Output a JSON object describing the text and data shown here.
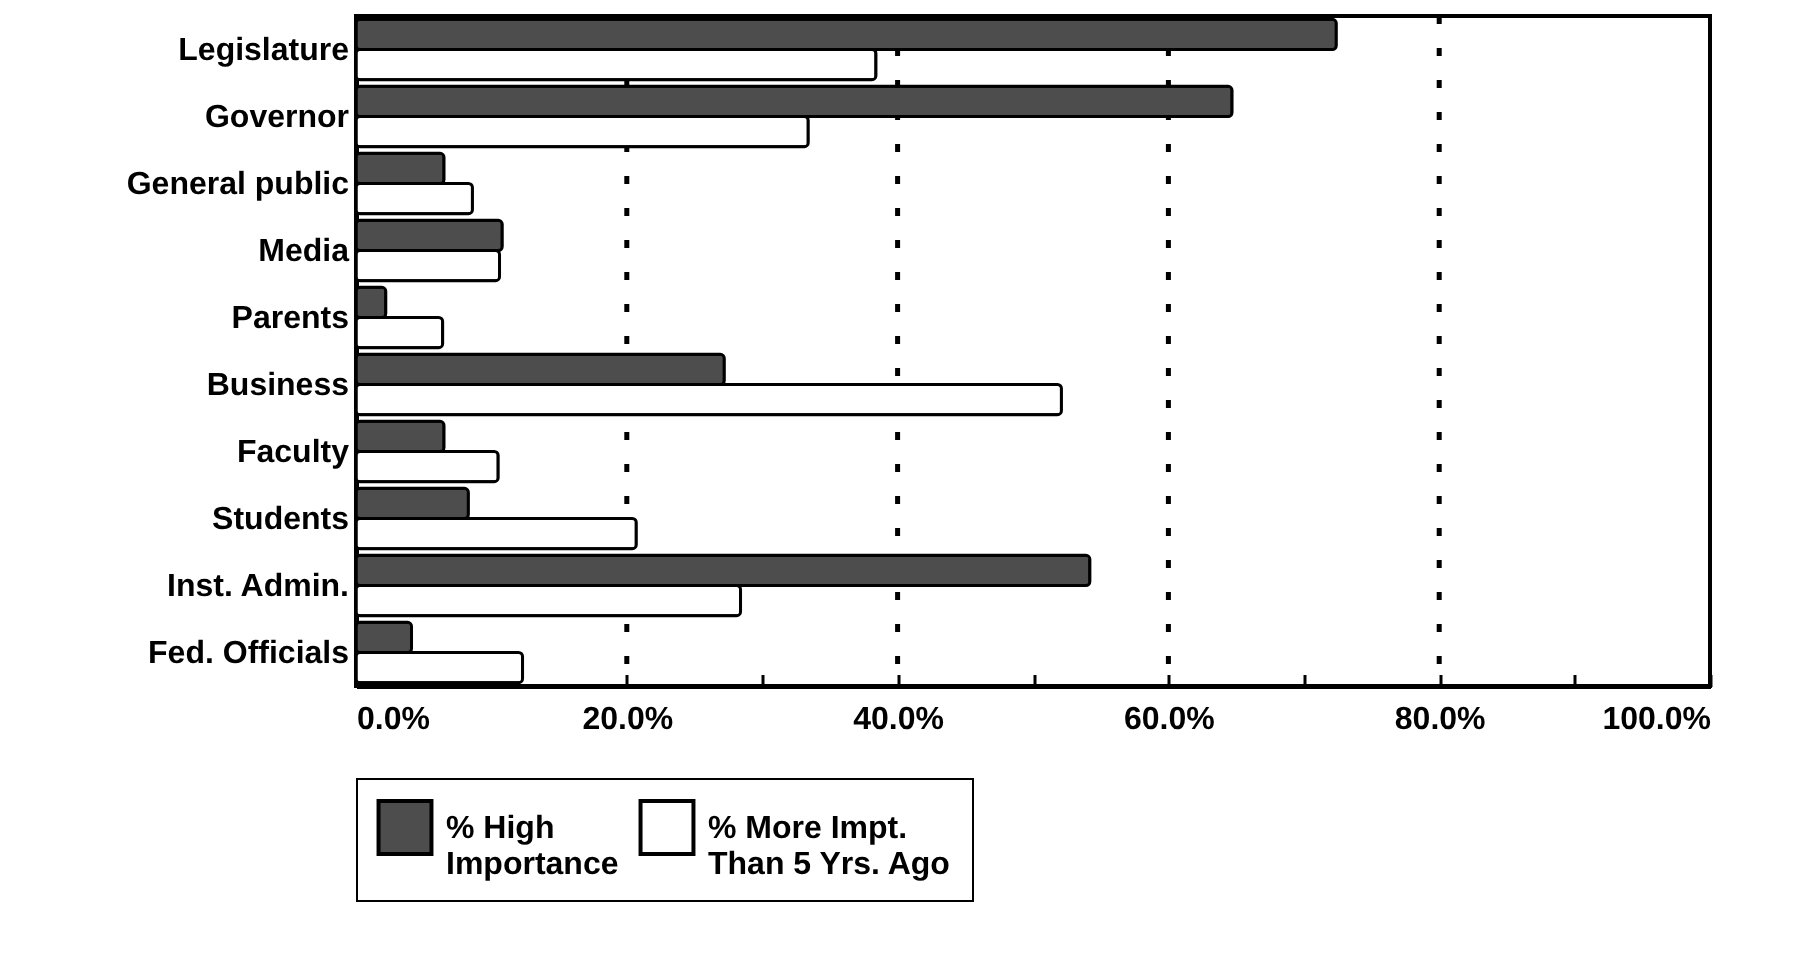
{
  "chart_data": {
    "type": "bar",
    "orientation": "horizontal",
    "categories": [
      "Legislature",
      "Governor",
      "General public",
      "Media",
      "Parents",
      "Business",
      "Faculty",
      "Students",
      "Inst. Admin.",
      "Fed. Officials"
    ],
    "series": [
      {
        "name": "% High Importance",
        "color": "#4d4d4d",
        "values": [
          72.4,
          64.7,
          6.5,
          10.8,
          2.2,
          27.2,
          6.5,
          8.3,
          54.2,
          4.1
        ]
      },
      {
        "name": "% More Impt. Than 5 Yrs. Ago",
        "color": "#ffffff",
        "values": [
          38.4,
          33.4,
          8.6,
          10.6,
          6.4,
          52.1,
          10.5,
          20.7,
          28.4,
          12.3
        ]
      }
    ],
    "xlim": [
      0,
      100
    ],
    "xticks": [
      {
        "value": 0,
        "label": "0.0%"
      },
      {
        "value": 10,
        "label": null
      },
      {
        "value": 20,
        "label": "20.0%"
      },
      {
        "value": 30,
        "label": null
      },
      {
        "value": 40,
        "label": "40.0%"
      },
      {
        "value": 50,
        "label": null
      },
      {
        "value": 60,
        "label": "60.0%"
      },
      {
        "value": 70,
        "label": null
      },
      {
        "value": 80,
        "label": "80.0%"
      },
      {
        "value": 90,
        "label": null
      },
      {
        "value": 100,
        "label": "100.0%"
      }
    ],
    "grid": "x",
    "legend": "bottom"
  }
}
